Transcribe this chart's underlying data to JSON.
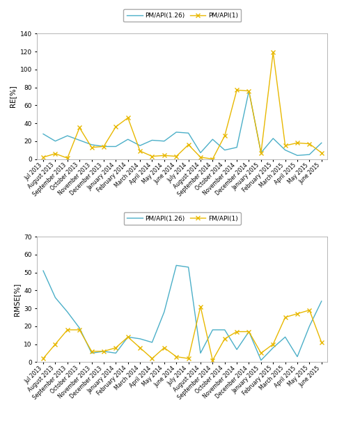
{
  "months": [
    "Jul 2013",
    "August 2013",
    "September 2013",
    "October 2013",
    "November 2013",
    "December 2013",
    "January 2014",
    "February 2014",
    "March 2014",
    "April 2014",
    "May 2014",
    "June 2014",
    "July 2014",
    "August 2014",
    "September 2014",
    "October 2014",
    "November 2014",
    "December 2014",
    "January 2015",
    "February 2015",
    "March 2015",
    "April 2015",
    "May 2015",
    "June 2015"
  ],
  "re_blue": [
    28,
    20,
    26,
    21,
    16,
    14,
    14,
    22,
    15,
    21,
    20,
    30,
    29,
    7,
    22,
    10,
    13,
    76,
    7,
    23,
    10,
    4,
    5,
    18
  ],
  "re_yellow": [
    2,
    6,
    1,
    35,
    13,
    14,
    36,
    46,
    9,
    3,
    4,
    3,
    16,
    2,
    0,
    26,
    77,
    76,
    7,
    119,
    15,
    18,
    17,
    7
  ],
  "rmse_blue": [
    51,
    36,
    28,
    19,
    5,
    6,
    5,
    14,
    13,
    11,
    28,
    54,
    53,
    5,
    18,
    18,
    7,
    17,
    1,
    8,
    14,
    3,
    20,
    34
  ],
  "rmse_yellow": [
    2,
    10,
    18,
    18,
    6,
    6,
    8,
    14,
    8,
    2,
    8,
    3,
    2,
    31,
    1,
    13,
    17,
    17,
    5,
    10,
    25,
    27,
    29,
    11
  ],
  "re_ylim": [
    0,
    140
  ],
  "re_yticks": [
    0,
    20,
    40,
    60,
    80,
    100,
    120,
    140
  ],
  "rmse_ylim": [
    0,
    70
  ],
  "rmse_yticks": [
    0,
    10,
    20,
    30,
    40,
    50,
    60,
    70
  ],
  "color_blue": "#4BAFC8",
  "color_yellow": "#E8B800",
  "legend1_labels": [
    "PM/API(1.26)",
    "PM/API(1)"
  ],
  "legend2_labels": [
    "PM/API(1.26)",
    "FM/API(1)"
  ],
  "ylabel_re": "RE[%]",
  "ylabel_rmse": "RMSE[%]",
  "fig_bg": "#ffffff",
  "axes_bg": "#ffffff"
}
